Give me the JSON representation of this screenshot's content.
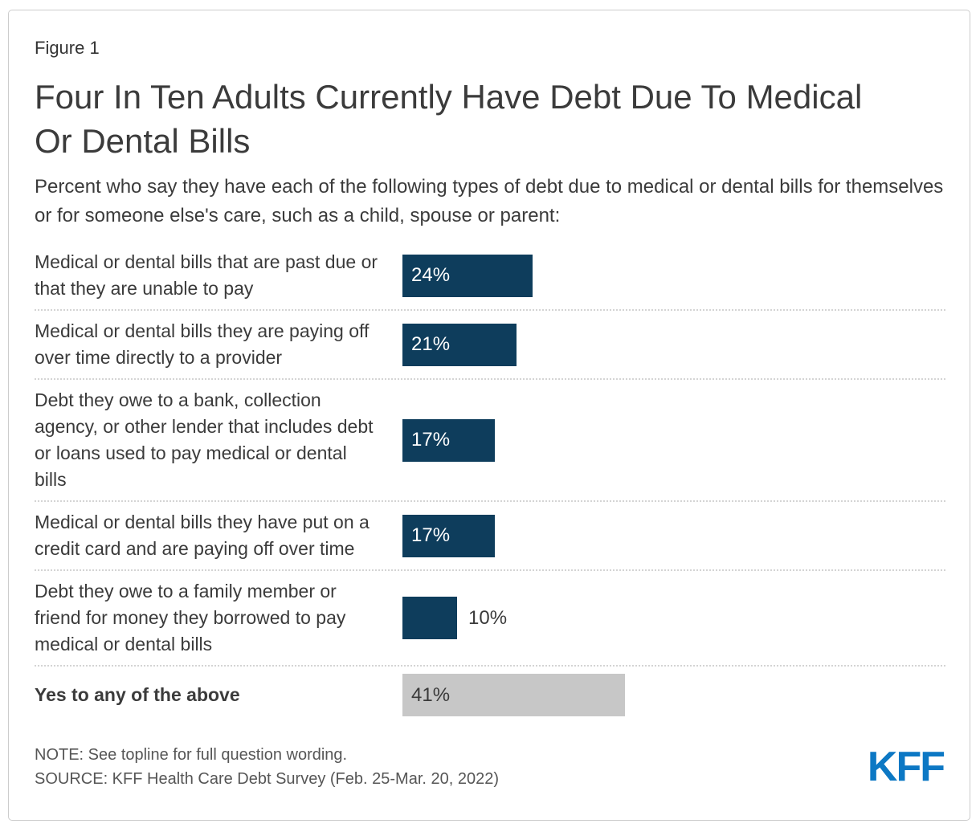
{
  "header": {
    "figure_label": "Figure 1",
    "title": "Four In Ten Adults Currently Have Debt Due To Medical Or Dental Bills",
    "subtitle": "Percent who say they have each of the following types of debt due to medical or dental bills for themselves or for someone else's care, such as a child, spouse or parent:"
  },
  "chart_data": {
    "type": "bar",
    "orientation": "horizontal",
    "unit": "percent",
    "xlim": [
      0,
      45
    ],
    "grid": false,
    "legend": false,
    "colors": {
      "bar_navy": "#0E3D5C",
      "bar_gray": "#C7C7C7",
      "value_inside_navy": "#FFFFFF",
      "value_dark": "#3A3A3A"
    },
    "categories": [
      "Medical or dental bills that are past due or that they are unable to pay",
      "Medical or dental bills they are paying off over time directly to a provider",
      "Debt they owe to a bank, collection agency, or other lender that includes debt or loans used to pay medical or dental bills",
      "Medical or dental bills they have put on a credit card and are paying off over time",
      "Debt they owe to a family member or friend for money they borrowed to pay medical or dental bills",
      "Yes to any of the above"
    ],
    "values": [
      24,
      21,
      17,
      17,
      10,
      41
    ],
    "rows": [
      {
        "label": "Medical or dental bills that are past due or that they are unable to pay",
        "value": 24,
        "display": "24%",
        "style": "navy",
        "bold": false,
        "value_position": "inside"
      },
      {
        "label": "Medical or dental bills they are paying off over time directly to a provider",
        "value": 21,
        "display": "21%",
        "style": "navy",
        "bold": false,
        "value_position": "inside"
      },
      {
        "label": "Debt they owe to a bank, collection agency, or other lender that includes debt or loans used to pay medical or dental bills",
        "value": 17,
        "display": "17%",
        "style": "navy",
        "bold": false,
        "value_position": "inside"
      },
      {
        "label": "Medical or dental bills they have put on a credit card and are paying off over time",
        "value": 17,
        "display": "17%",
        "style": "navy",
        "bold": false,
        "value_position": "inside"
      },
      {
        "label": "Debt they owe to a family member or friend for money they borrowed to pay medical or dental bills",
        "value": 10,
        "display": "10%",
        "style": "navy",
        "bold": false,
        "value_position": "outside"
      },
      {
        "label": "Yes to any of the above",
        "value": 41,
        "display": "41%",
        "style": "gray",
        "bold": true,
        "value_position": "inside"
      }
    ]
  },
  "footer": {
    "note": "NOTE: See topline for full question wording.",
    "source": "SOURCE: KFF Health Care Debt Survey (Feb. 25-Mar. 20, 2022)",
    "logo": "KFF",
    "logo_color": "#0C78C4"
  }
}
